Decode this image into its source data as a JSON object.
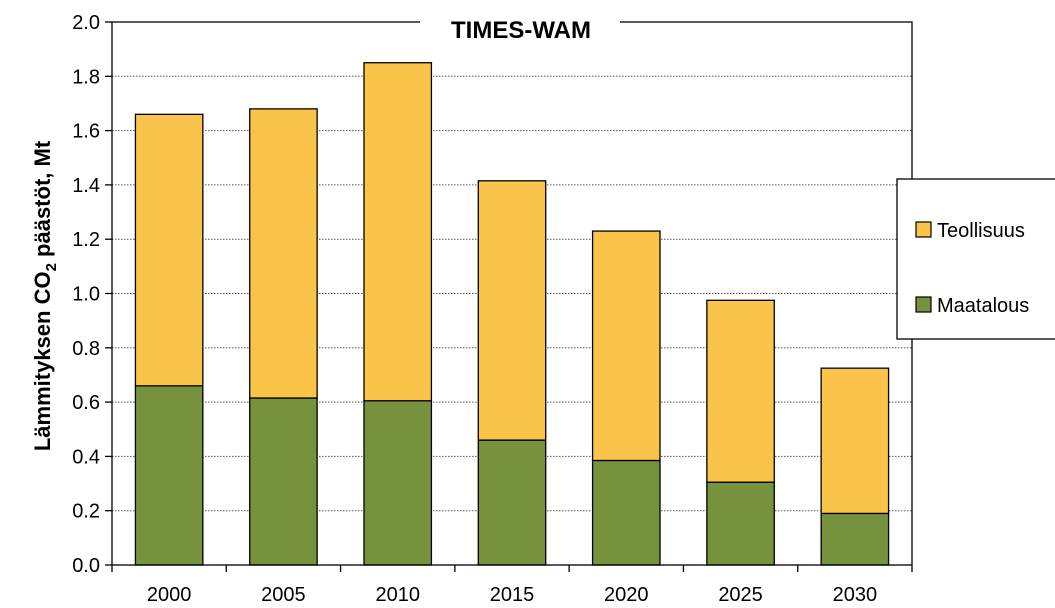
{
  "chart_data": {
    "type": "bar",
    "stacked": true,
    "title": "TIMES-WAM",
    "ylabel": {
      "pre": "Lämmityksen CO",
      "sub": "2",
      "post": " päästöt, Mt"
    },
    "xlabel": "",
    "categories": [
      "2000",
      "2005",
      "2010",
      "2015",
      "2020",
      "2025",
      "2030"
    ],
    "series": [
      {
        "name": "Maatalous",
        "color": "#76923c",
        "values": [
          0.66,
          0.615,
          0.605,
          0.46,
          0.385,
          0.305,
          0.19
        ]
      },
      {
        "name": "Teollisuus",
        "color": "#fac34a",
        "values": [
          1.0,
          1.065,
          1.245,
          0.955,
          0.845,
          0.67,
          0.535
        ]
      }
    ],
    "ylim": [
      0,
      2.0
    ],
    "yticks": [
      "0.0",
      "0.2",
      "0.4",
      "0.6",
      "0.8",
      "1.0",
      "1.2",
      "1.4",
      "1.6",
      "1.8",
      "2.0"
    ],
    "grid": "horizontal dotted",
    "legend": {
      "position": "right",
      "order": [
        "Teollisuus",
        "Maatalous"
      ]
    }
  }
}
